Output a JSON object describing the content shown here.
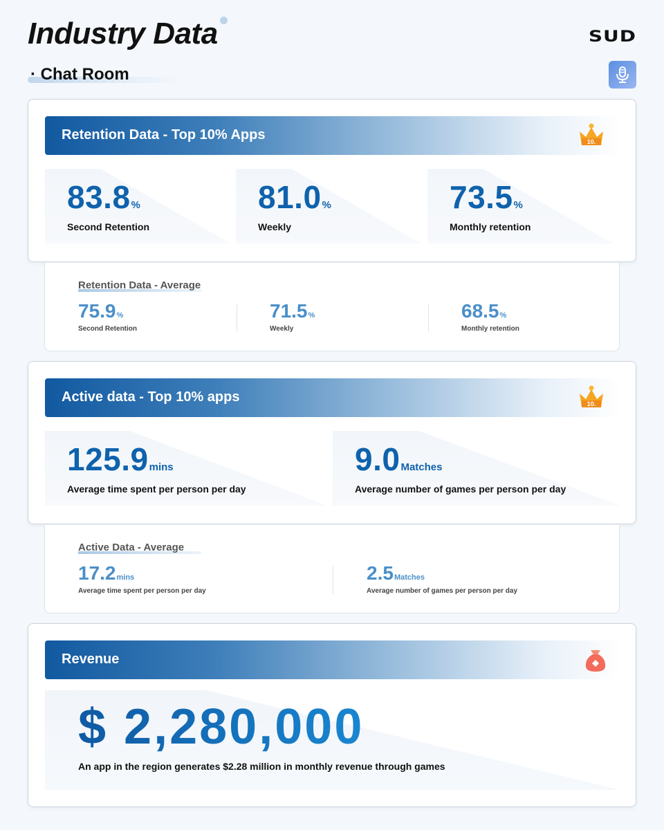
{
  "header": {
    "title": "Industry Data",
    "brand": "SUD",
    "subtitle": "· Chat Room",
    "mic_icon": "microphone-icon"
  },
  "retention_top": {
    "title": "Retention Data - Top 10% Apps",
    "badge": "10.",
    "stats": [
      {
        "value": "83.8",
        "unit": "%",
        "label": "Second Retention"
      },
      {
        "value": "81.0",
        "unit": "%",
        "label": "Weekly"
      },
      {
        "value": "73.5",
        "unit": "%",
        "label": "Monthly retention"
      }
    ]
  },
  "retention_avg": {
    "title": "Retention Data - Average",
    "stats": [
      {
        "value": "75.9",
        "unit": "%",
        "label": "Second Retention"
      },
      {
        "value": "71.5",
        "unit": "%",
        "label": "Weekly"
      },
      {
        "value": "68.5",
        "unit": "%",
        "label": "Monthly retention"
      }
    ]
  },
  "active_top": {
    "title": "Active data - Top 10% apps",
    "badge": "10.",
    "stats": [
      {
        "value": "125.9",
        "unit": "mins",
        "label": "Average time spent per person per day"
      },
      {
        "value": "9.0",
        "unit": "Matches",
        "label": "Average number of games per person per day"
      }
    ]
  },
  "active_avg": {
    "title": "Active Data - Average",
    "stats": [
      {
        "value": "17.2",
        "unit": "mins",
        "label": "Average time spent per person per day"
      },
      {
        "value": "2.5",
        "unit": "Matches",
        "label": "Average number of games per person per day"
      }
    ]
  },
  "revenue": {
    "title": "Revenue",
    "value": "$ 2,280,000",
    "label": "An app in the region generates $2.28 million in monthly revenue through games"
  },
  "colors": {
    "accent": "#0f62ac",
    "accent_light": "#4a8fc8",
    "crown": "#f5a623",
    "money_bag": "#f26b5b"
  }
}
